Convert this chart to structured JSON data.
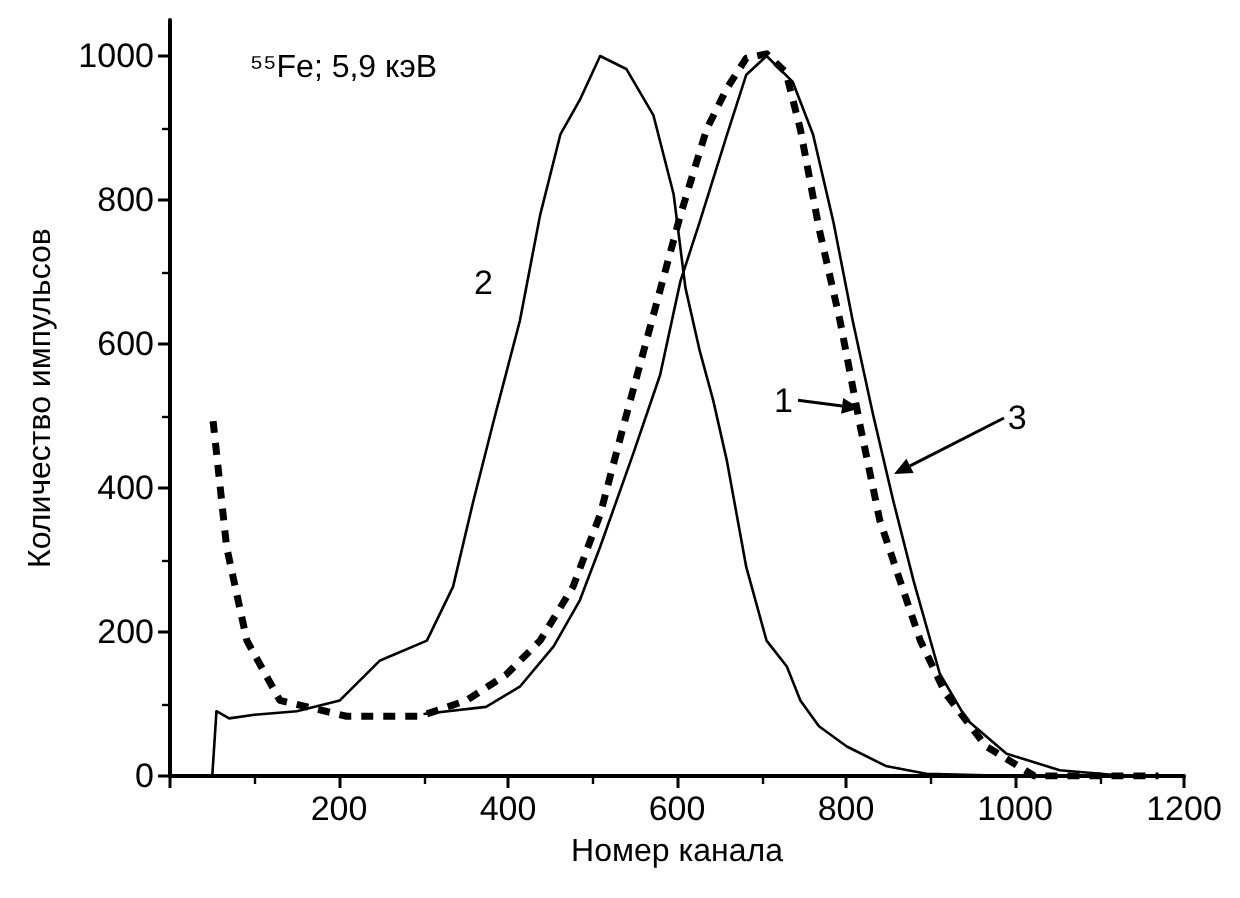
{
  "chart_data": {
    "type": "line",
    "xlabel": "Номер канала",
    "ylabel": "Количество импульсов",
    "xlim": [
      0,
      1200
    ],
    "ylim": [
      0,
      1050
    ],
    "xticks": [
      {
        "value": 0,
        "label": null
      },
      200,
      400,
      600,
      800,
      1000,
      1200
    ],
    "yticks": [
      0,
      200,
      400,
      600,
      800,
      1000
    ],
    "grid": false,
    "legend": false,
    "marker": "none",
    "line_style": "solid",
    "annotations": [
      "⁵⁵Fe; 5,9 кэВ",
      {
        "text": "1",
        "x": 816,
        "y": 510
      },
      "2",
      {
        "text": "3",
        "x": 856,
        "y": 419
      }
    ],
    "series": [
      {
        "color": "#000000",
        "line_style": "dashed",
        "x": [
          51,
          67,
          91,
          130,
          209,
          296,
          351,
          398,
          438,
          477,
          509,
          540,
          572,
          604,
          635,
          659,
          682,
          706,
          729,
          746,
          768,
          793,
          817,
          840,
          864,
          888,
          918,
          966,
          1023,
          1100,
          1170
        ],
        "values": [
          493,
          318,
          188,
          105,
          83,
          83,
          105,
          141,
          188,
          263,
          363,
          501,
          640,
          779,
          898,
          955,
          997,
          1003,
          977,
          898,
          761,
          632,
          485,
          355,
          271,
          188,
          114,
          41,
          0,
          0,
          0
        ]
      },
      {
        "color": "#000000",
        "x": [
          40,
          50,
          55,
          70,
          100,
          150,
          201,
          248,
          304,
          335,
          359,
          383,
          414,
          438,
          462,
          485,
          509,
          540,
          572,
          596,
          610,
          627,
          643,
          659,
          682,
          706,
          730,
          746,
          768,
          801,
          847,
          895,
          1000,
          1170
        ],
        "values": [
          0,
          0,
          90,
          80,
          85,
          90,
          105,
          160,
          188,
          263,
          382,
          493,
          632,
          779,
          891,
          939,
          1000,
          982,
          918,
          808,
          678,
          590,
          521,
          438,
          290,
          188,
          152,
          105,
          69,
          41,
          14,
          3,
          0,
          0
        ]
      },
      {
        "color": "#000000",
        "x": [
          300,
          374,
          414,
          454,
          485,
          509,
          548,
          580,
          604,
          627,
          659,
          682,
          706,
          737,
          761,
          785,
          808,
          832,
          856,
          880,
          911,
          943,
          990,
          1053,
          1132,
          1170
        ],
        "values": [
          86,
          96,
          124,
          180,
          244,
          318,
          447,
          557,
          687,
          770,
          890,
          974,
          1000,
          964,
          891,
          770,
          632,
          502,
          382,
          271,
          142,
          78,
          31,
          8,
          0,
          0
        ]
      }
    ]
  }
}
